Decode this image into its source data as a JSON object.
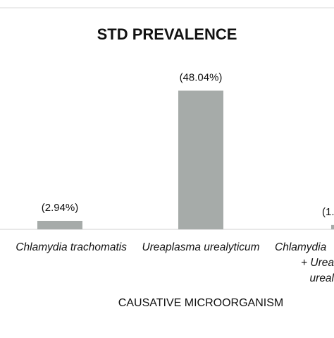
{
  "chart_data": {
    "type": "bar",
    "title": "STD PREVALENCE",
    "xlabel": "CAUSATIVE MICROORGANISM",
    "ylabel": "",
    "categories": [
      {
        "lines": [
          "Chlamydia trachomatis"
        ],
        "shown": "hlamydia trachomatis"
      },
      {
        "lines": [
          "Ureaplasma urealyticum"
        ],
        "shown": "Ureaplasma urealyticum"
      },
      {
        "lines": [
          "Chlamydia",
          "+ Urea",
          "ureal"
        ],
        "shown": "Chlamydia"
      }
    ],
    "values": [
      2.94,
      48.04,
      1.5
    ],
    "data_labels": [
      "(2.94%)",
      "(48.04%)",
      "(1."
    ],
    "ylim": [
      0,
      55
    ],
    "grid": false,
    "legend": "none",
    "colors": {
      "bar": "#a6aba9",
      "text": "#111111",
      "axis": "#d0d0d0",
      "border": "#d9d9d9"
    }
  }
}
